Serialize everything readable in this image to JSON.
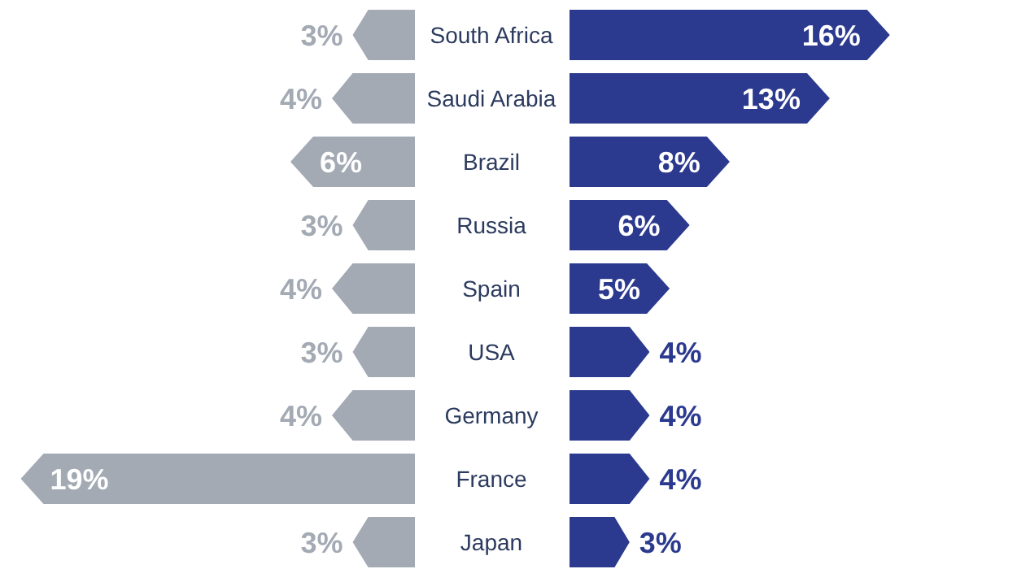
{
  "chart_data": [
    {
      "type": "bar",
      "orientation": "horizontal",
      "categories": [
        "South Africa",
        "Saudi Arabia",
        "Brazil",
        "Russia",
        "Spain",
        "USA",
        "Germany",
        "France",
        "Japan"
      ],
      "values": [
        3,
        4,
        6,
        3,
        4,
        3,
        4,
        19,
        3
      ],
      "value_labels": [
        "3%",
        "4%",
        "6%",
        "3%",
        "4%",
        "3%",
        "4%",
        "19%",
        "3%"
      ],
      "color": "#a3aab4",
      "xlim": [
        20,
        0
      ]
    },
    {
      "type": "bar",
      "orientation": "horizontal",
      "categories": [
        null,
        null,
        null,
        null,
        null,
        null,
        null,
        null,
        null
      ],
      "values": [
        16,
        13,
        8,
        6,
        5,
        4,
        4,
        4,
        3
      ],
      "value_labels": [
        "16%",
        "13%",
        "8%",
        "6%",
        "5%",
        "4%",
        "4%",
        "4%",
        "3%"
      ],
      "color": "#2b3a8e",
      "xlim": [
        0,
        23
      ]
    }
  ]
}
